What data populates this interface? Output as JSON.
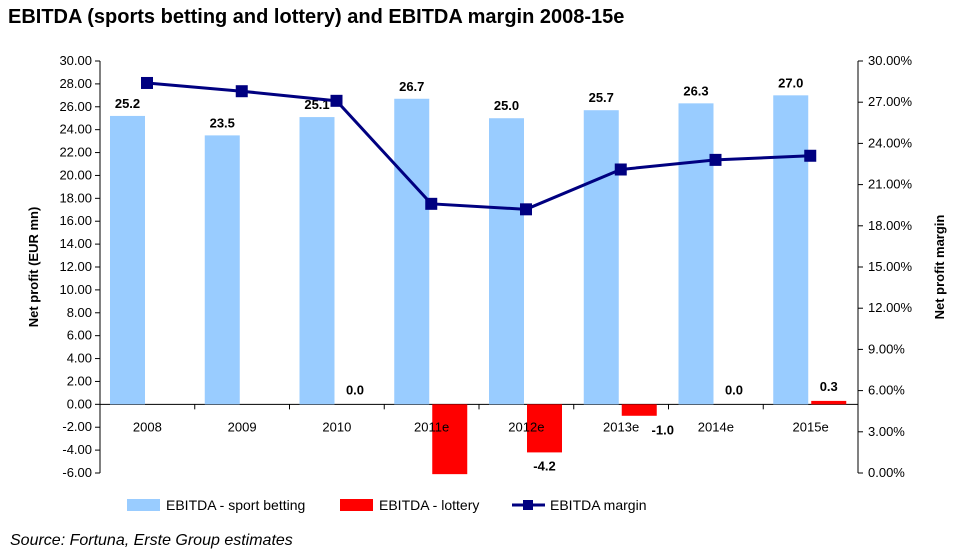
{
  "title": "EBITDA (sports betting and lottery) and EBITDA margin 2008-15e",
  "source": "Source: Fortuna, Erste Group estimates",
  "chart_data": {
    "type": "bar",
    "categories": [
      "2008",
      "2009",
      "2010",
      "2011e",
      "2012e",
      "2013e",
      "2014e",
      "2015e"
    ],
    "series": [
      {
        "name": "EBITDA - sport betting",
        "type": "bar",
        "axis": "left",
        "color": "#99ccff",
        "values": [
          25.2,
          23.5,
          25.1,
          26.7,
          25.0,
          25.7,
          26.3,
          27.0
        ],
        "labels": [
          "25.2",
          "23.5",
          "25.1",
          "26.7",
          "25.0",
          "25.7",
          "26.3",
          "27.0"
        ]
      },
      {
        "name": "EBITDA - lottery",
        "type": "bar",
        "axis": "left",
        "color": "#ff0000",
        "values": [
          null,
          null,
          0.0,
          -6.1,
          -4.2,
          -1.0,
          0.0,
          0.3
        ],
        "labels": [
          "",
          "",
          "0.0",
          "",
          "-4.2",
          "-1.0",
          "0.0",
          "0.3"
        ]
      },
      {
        "name": "EBITDA margin",
        "type": "line",
        "axis": "right",
        "color": "#000080",
        "values": [
          28.4,
          27.8,
          27.1,
          19.6,
          19.2,
          22.1,
          22.8,
          23.1
        ]
      }
    ],
    "ylabel": "Net profit (EUR mn)",
    "y2label": "Net profit margin",
    "ylim": [
      -6,
      30
    ],
    "yticks": [
      "30.00",
      "28.00",
      "26.00",
      "24.00",
      "22.00",
      "20.00",
      "18.00",
      "16.00",
      "14.00",
      "12.00",
      "10.00",
      "8.00",
      "6.00",
      "4.00",
      "2.00",
      "0.00",
      "-2.00",
      "-4.00",
      "-6.00"
    ],
    "y2lim": [
      0,
      30
    ],
    "y2ticks": [
      "30.00%",
      "27.00%",
      "24.00%",
      "21.00%",
      "18.00%",
      "15.00%",
      "12.00%",
      "9.00%",
      "6.00%",
      "3.00%",
      "0.00%"
    ],
    "grid": false,
    "legend_position": "bottom"
  }
}
